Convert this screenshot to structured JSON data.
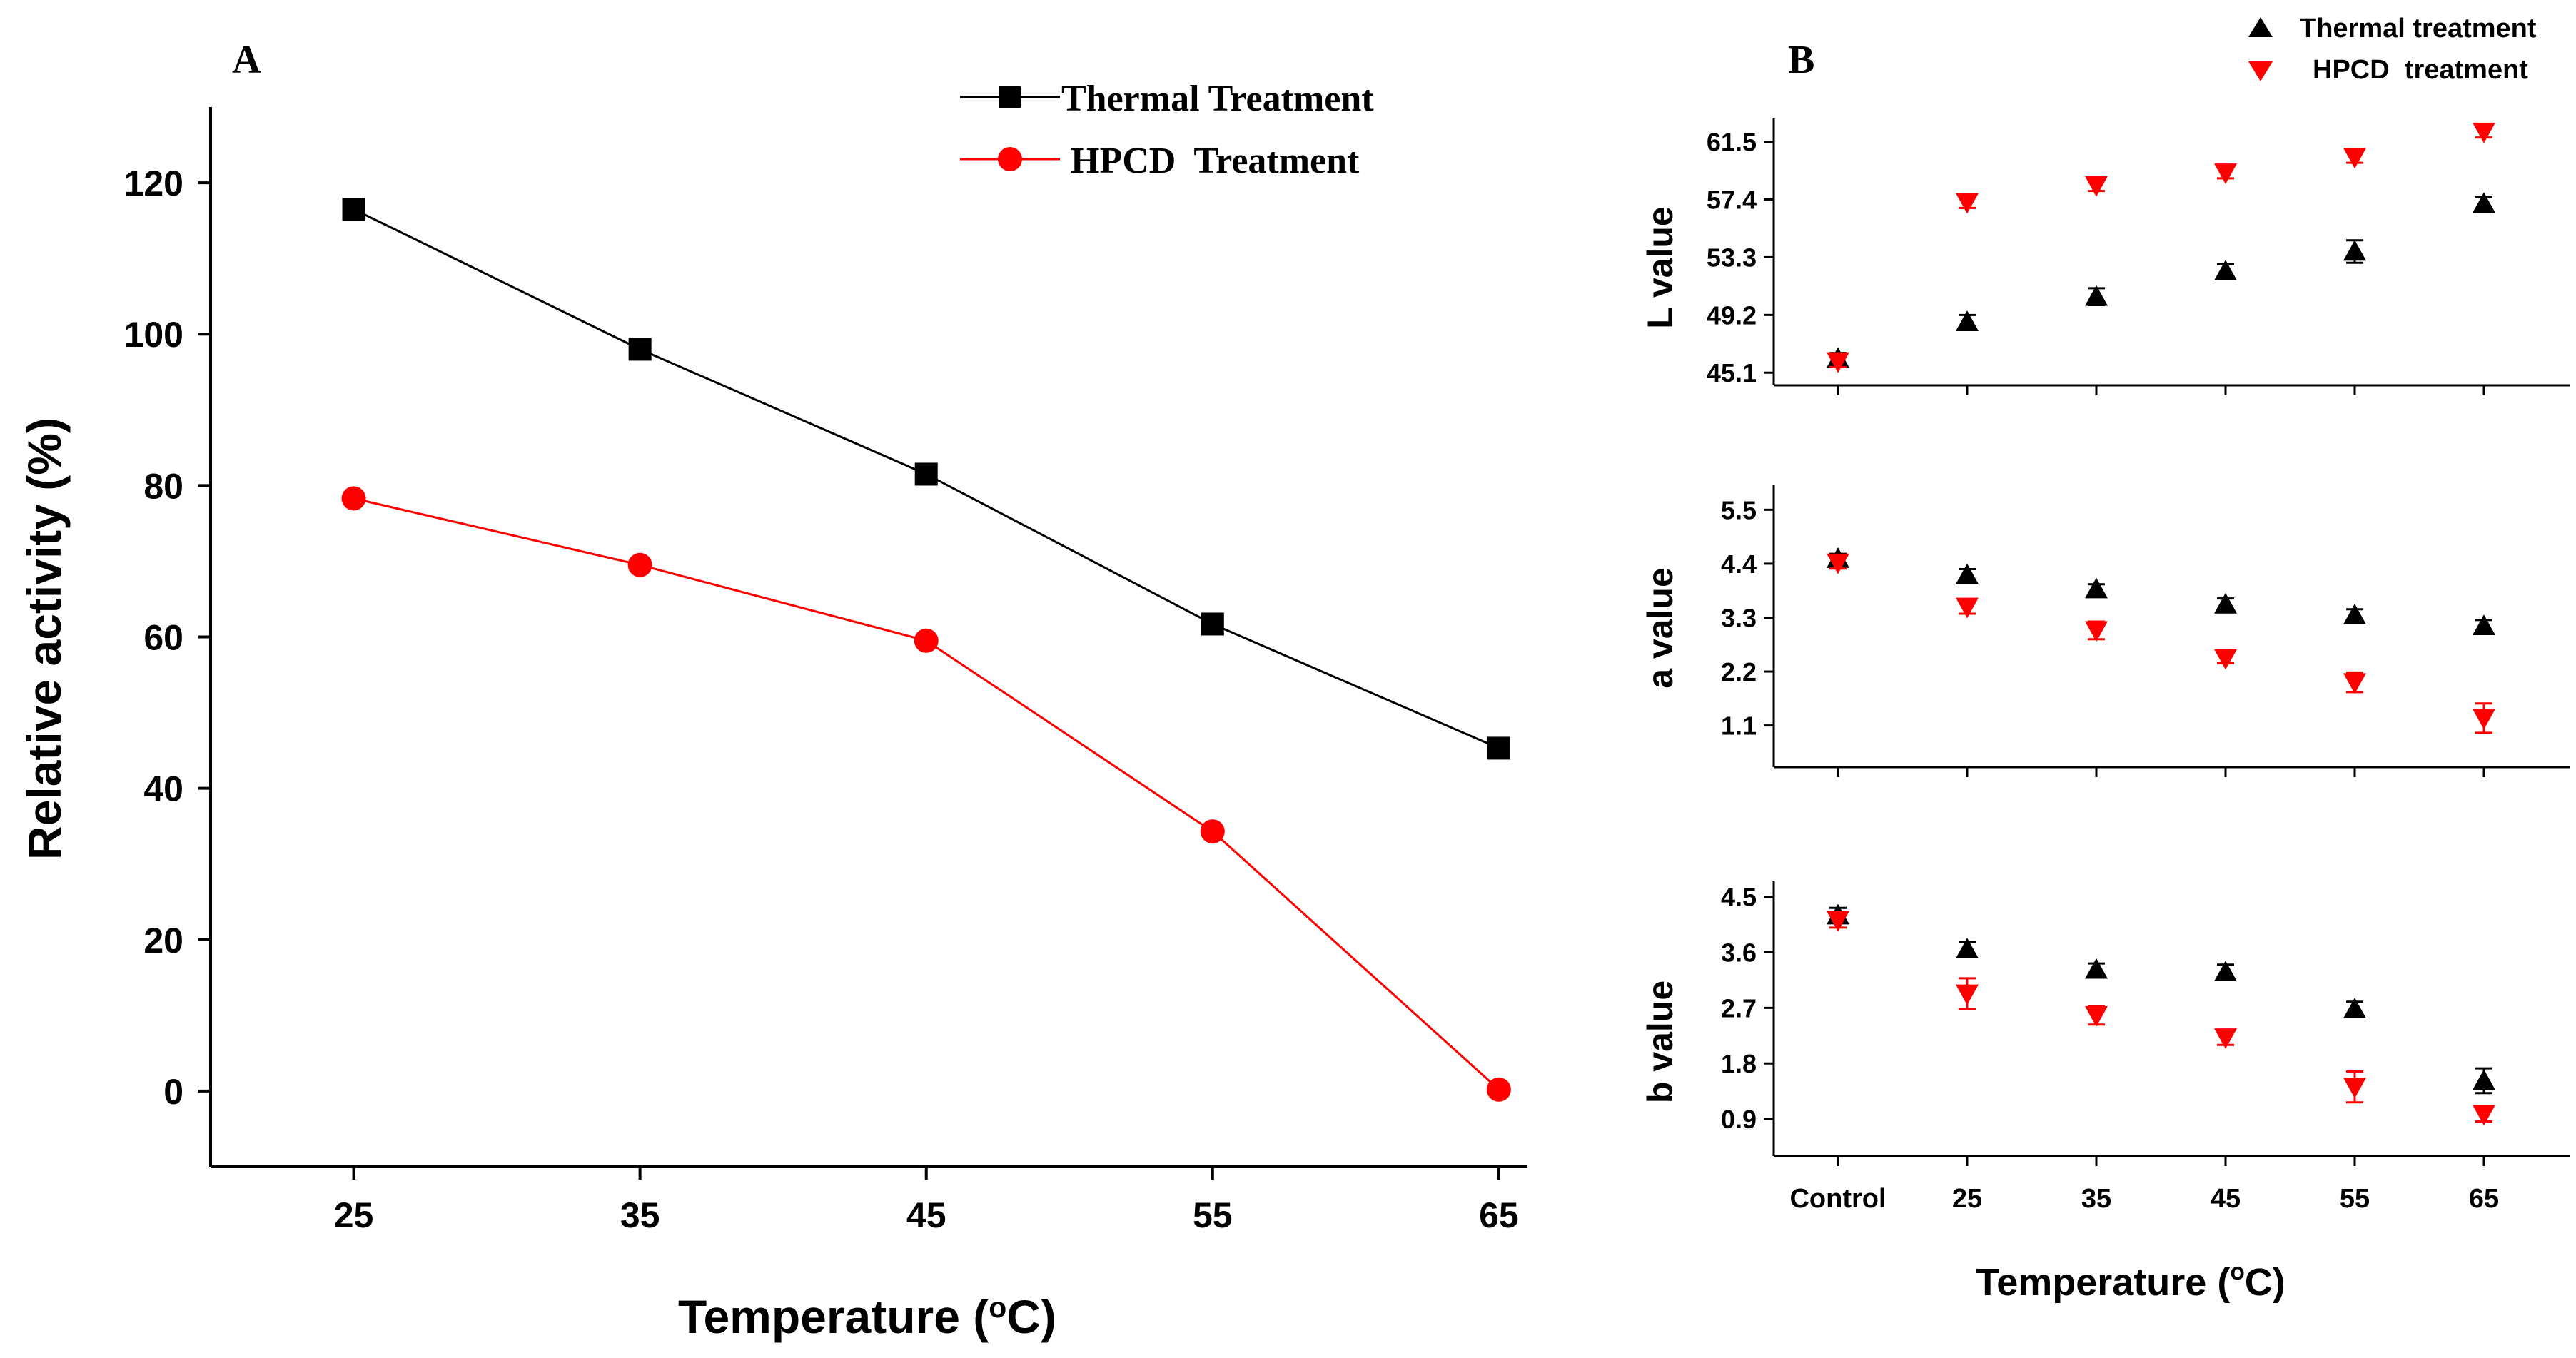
{
  "panel_labels": {
    "a": "A",
    "b": "B"
  },
  "legend_a": {
    "thermal": "Thermal Treatment",
    "hpcd": "HPCD  Treatment"
  },
  "legend_b": {
    "thermal": "Thermal treatment",
    "hpcd": "HPCD  treatment"
  },
  "colors": {
    "thermal": "#000000",
    "hpcd": "#ff0000",
    "axis": "#000000"
  },
  "chart_data": [
    {
      "type": "line",
      "panel": "A",
      "xlabel": "Temperature (°C)",
      "ylabel": "Relative activity (%)",
      "x": [
        25,
        35,
        45,
        55,
        65
      ],
      "x_ticks": [
        "25",
        "35",
        "45",
        "55",
        "65"
      ],
      "xlim": [
        20,
        66
      ],
      "ylim": [
        -10,
        130
      ],
      "y_ticks": [
        0,
        20,
        40,
        60,
        80,
        100,
        120
      ],
      "grid": false,
      "legend_position": "top-right",
      "series": [
        {
          "name": "Thermal Treatment",
          "marker": "square",
          "color": "#000000",
          "values": [
            116.5,
            98,
            81.5,
            61.7,
            45.3
          ]
        },
        {
          "name": "HPCD  Treatment",
          "marker": "circle",
          "color": "#ff0000",
          "values": [
            78.3,
            69.5,
            59.5,
            34.3,
            0.2
          ]
        }
      ]
    },
    {
      "type": "scatter",
      "panel": "B",
      "ylabel": "L value",
      "categories": [
        "Control",
        "25",
        "35",
        "45",
        "55",
        "65"
      ],
      "ylim": [
        44.2,
        63.2
      ],
      "y_ticks": [
        "45.1",
        "49.2",
        "53.3",
        "57.4",
        "61.5"
      ],
      "grid": false,
      "legend_position": "top-right",
      "series": [
        {
          "name": "Thermal treatment",
          "marker": "triangle-up",
          "color": "#000000",
          "values": [
            46.1,
            48.7,
            50.5,
            52.3,
            53.7,
            57.1
          ],
          "errors": [
            0.4,
            0.5,
            0.6,
            0.5,
            0.8,
            0.5
          ]
        },
        {
          "name": "HPCD  treatment",
          "marker": "triangle-down",
          "color": "#ff0000",
          "values": [
            45.9,
            57.2,
            58.4,
            59.3,
            60.4,
            62.2
          ],
          "errors": [
            0.4,
            0.4,
            0.4,
            0.4,
            0.4,
            0.4
          ]
        }
      ]
    },
    {
      "type": "scatter",
      "panel": "B",
      "ylabel": "a value",
      "categories": [
        "Control",
        "25",
        "35",
        "45",
        "55",
        "65"
      ],
      "ylim": [
        0.25,
        6.0
      ],
      "y_ticks": [
        "1.1",
        "2.2",
        "3.3",
        "4.4",
        "5.5"
      ],
      "grid": false,
      "series": [
        {
          "name": "Thermal treatment",
          "marker": "triangle-up",
          "color": "#000000",
          "values": [
            4.5,
            4.17,
            3.88,
            3.57,
            3.35,
            3.13
          ],
          "errors": [
            0.1,
            0.12,
            0.1,
            0.12,
            0.12,
            0.12
          ]
        },
        {
          "name": "HPCD  treatment",
          "marker": "triangle-down",
          "color": "#ff0000",
          "values": [
            4.42,
            3.52,
            3.04,
            2.47,
            1.98,
            1.25
          ],
          "errors": [
            0.12,
            0.14,
            0.18,
            0.1,
            0.2,
            0.3
          ]
        }
      ]
    },
    {
      "type": "scatter",
      "panel": "B",
      "ylabel": "b value",
      "categories": [
        "Control",
        "25",
        "35",
        "45",
        "55",
        "65"
      ],
      "ylim": [
        0.3,
        4.75
      ],
      "y_ticks": [
        "0.9",
        "1.8",
        "2.7",
        "3.6",
        "4.5"
      ],
      "grid": false,
      "series": [
        {
          "name": "Thermal treatment",
          "marker": "triangle-up",
          "color": "#000000",
          "values": [
            4.2,
            3.65,
            3.32,
            3.28,
            2.68,
            1.52
          ],
          "errors": [
            0.12,
            0.12,
            0.1,
            0.12,
            0.12,
            0.2
          ]
        },
        {
          "name": "HPCD  treatment",
          "marker": "triangle-down",
          "color": "#ff0000",
          "values": [
            4.12,
            2.93,
            2.58,
            2.22,
            1.42,
            0.98
          ],
          "errors": [
            0.12,
            0.25,
            0.15,
            0.12,
            0.25,
            0.12
          ]
        }
      ]
    }
  ],
  "shared_xlabel_b": "Temperature (°C)"
}
